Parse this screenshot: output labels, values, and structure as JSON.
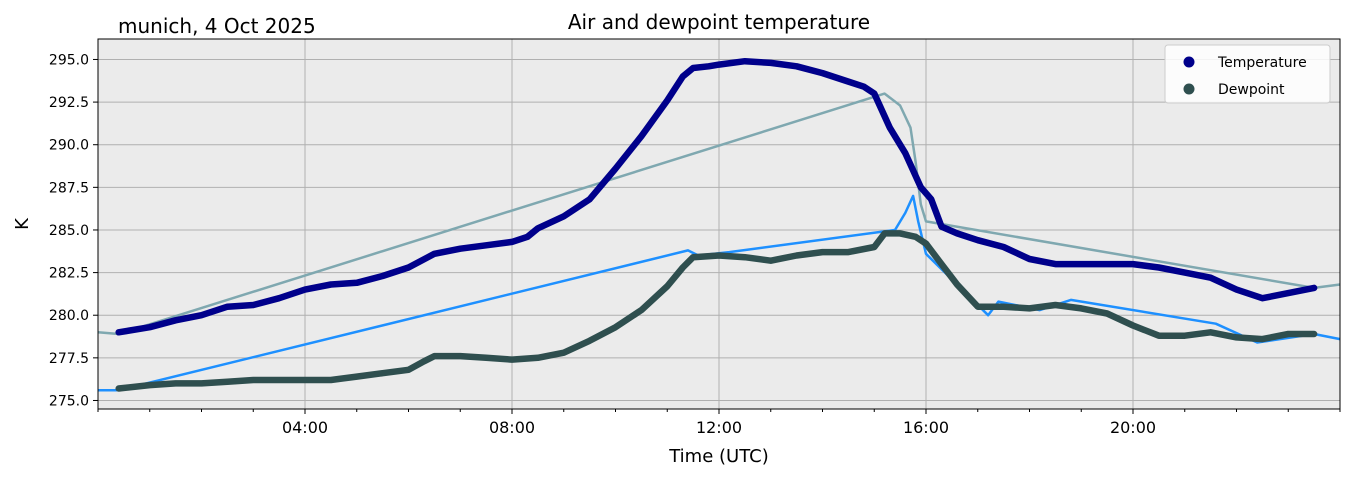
{
  "chart_data": {
    "type": "line",
    "title": "Air and dewpoint temperature",
    "subtitle": "munich, 4 Oct 2025",
    "xlabel": "Time (UTC)",
    "ylabel": "K",
    "xlim": [
      0,
      24
    ],
    "ylim": [
      274.5,
      296.2
    ],
    "x_ticks": [
      {
        "value": 4,
        "label": "04:00"
      },
      {
        "value": 8,
        "label": "08:00"
      },
      {
        "value": 12,
        "label": "12:00"
      },
      {
        "value": 16,
        "label": "16:00"
      },
      {
        "value": 20,
        "label": "20:00"
      }
    ],
    "y_ticks": [
      {
        "value": 275.0,
        "label": "275.0"
      },
      {
        "value": 277.5,
        "label": "277.5"
      },
      {
        "value": 280.0,
        "label": "280.0"
      },
      {
        "value": 282.5,
        "label": "282.5"
      },
      {
        "value": 285.0,
        "label": "285.0"
      },
      {
        "value": 287.5,
        "label": "287.5"
      },
      {
        "value": 290.0,
        "label": "290.0"
      },
      {
        "value": 292.5,
        "label": "292.5"
      },
      {
        "value": 295.0,
        "label": "295.0"
      }
    ],
    "grid": true,
    "legend_position": "top-right",
    "background": "#ebebeb",
    "series": [
      {
        "name": "Temperature",
        "color": "#00008b",
        "raw_color": "#7fa8b0",
        "x": [
          0.4,
          1.0,
          1.5,
          2.0,
          2.5,
          3.0,
          3.5,
          4.0,
          4.5,
          5.0,
          5.5,
          6.0,
          6.5,
          7.0,
          7.5,
          8.0,
          8.3,
          8.5,
          9.0,
          9.5,
          10.0,
          10.5,
          11.0,
          11.3,
          11.5,
          11.8,
          12.0,
          12.5,
          13.0,
          13.5,
          14.0,
          14.5,
          14.8,
          15.0,
          15.3,
          15.6,
          15.9,
          16.1,
          16.3,
          16.6,
          17.0,
          17.5,
          18.0,
          18.5,
          19.0,
          19.5,
          20.0,
          20.5,
          21.0,
          21.5,
          22.0,
          22.5,
          23.0,
          23.5
        ],
        "values": [
          279.0,
          279.3,
          279.7,
          280.0,
          280.5,
          280.6,
          281.0,
          281.5,
          281.8,
          281.9,
          282.3,
          282.8,
          283.6,
          283.9,
          284.1,
          284.3,
          284.6,
          285.1,
          285.8,
          286.8,
          288.6,
          290.5,
          292.6,
          294.0,
          294.5,
          294.6,
          294.7,
          294.9,
          294.8,
          294.6,
          294.2,
          293.7,
          293.4,
          293.0,
          291.0,
          289.5,
          287.5,
          286.8,
          285.2,
          284.8,
          284.4,
          284.0,
          283.3,
          283.0,
          283.0,
          283.0,
          283.0,
          282.8,
          282.5,
          282.2,
          281.5,
          281.0,
          281.3,
          281.6
        ],
        "raw_x": [
          0,
          0.4,
          15.2,
          15.5,
          15.7,
          15.8,
          15.9,
          16.0,
          23.5,
          24.0
        ],
        "raw_values": [
          279.0,
          278.9,
          293.0,
          292.3,
          291.0,
          289.0,
          286.5,
          285.5,
          281.6,
          281.8
        ]
      },
      {
        "name": "Dewpoint",
        "color": "#2f4f4f",
        "raw_color": "#1e90ff",
        "x": [
          0.4,
          1.0,
          1.5,
          2.0,
          2.5,
          3.0,
          3.5,
          4.0,
          4.5,
          5.0,
          5.5,
          6.0,
          6.3,
          6.5,
          7.0,
          7.5,
          8.0,
          8.5,
          9.0,
          9.5,
          10.0,
          10.5,
          11.0,
          11.3,
          11.5,
          12.0,
          12.5,
          13.0,
          13.5,
          14.0,
          14.5,
          15.0,
          15.2,
          15.5,
          15.8,
          16.0,
          16.3,
          16.6,
          17.0,
          17.5,
          18.0,
          18.5,
          19.0,
          19.5,
          20.0,
          20.5,
          21.0,
          21.5,
          22.0,
          22.5,
          23.0,
          23.5
        ],
        "values": [
          275.7,
          275.9,
          276.0,
          276.0,
          276.1,
          276.2,
          276.2,
          276.2,
          276.2,
          276.4,
          276.6,
          276.8,
          277.3,
          277.6,
          277.6,
          277.5,
          277.4,
          277.5,
          277.8,
          278.5,
          279.3,
          280.3,
          281.7,
          282.8,
          283.4,
          283.5,
          283.4,
          283.2,
          283.5,
          283.7,
          283.7,
          284.0,
          284.8,
          284.8,
          284.6,
          284.2,
          283.0,
          281.8,
          280.5,
          280.5,
          280.4,
          280.6,
          280.4,
          280.1,
          279.4,
          278.8,
          278.8,
          279.0,
          278.7,
          278.6,
          278.9,
          278.9
        ],
        "raw_x": [
          0,
          0.4,
          11.4,
          11.6,
          12.2,
          15.4,
          15.6,
          15.75,
          15.85,
          16.0,
          17.2,
          17.4,
          18.2,
          18.8,
          21.6,
          22.4,
          23.5,
          24.0
        ],
        "raw_values": [
          275.6,
          275.6,
          283.8,
          283.5,
          283.7,
          285.0,
          286.0,
          287.0,
          285.5,
          283.6,
          280.0,
          280.8,
          280.3,
          280.9,
          279.5,
          278.4,
          278.9,
          278.6
        ]
      }
    ]
  }
}
